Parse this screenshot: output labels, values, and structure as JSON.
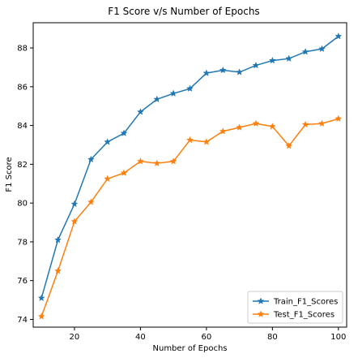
{
  "chart_data": {
    "type": "line",
    "title": "F1 Score v/s Number of Epochs",
    "xlabel": "Number of Epochs",
    "ylabel": "F1 Score",
    "xlim": [
      7.5,
      102.5
    ],
    "ylim": [
      73.6,
      89.3
    ],
    "xticks": [
      20,
      40,
      60,
      80,
      100
    ],
    "yticks": [
      74,
      76,
      78,
      80,
      82,
      84,
      86,
      88
    ],
    "grid": false,
    "legend_position": "lower-right",
    "marker": "star",
    "x": [
      10,
      15,
      20,
      25,
      30,
      35,
      40,
      45,
      50,
      55,
      60,
      65,
      70,
      75,
      80,
      85,
      90,
      95,
      100
    ],
    "series": [
      {
        "name": "Train_F1_Scores",
        "color": "#1f77b4",
        "values": [
          75.1,
          78.1,
          79.95,
          82.25,
          83.15,
          83.6,
          84.7,
          85.35,
          85.65,
          85.9,
          86.7,
          86.85,
          86.75,
          87.1,
          87.35,
          87.45,
          87.8,
          87.95,
          88.6
        ]
      },
      {
        "name": "Test_F1_Scores",
        "color": "#ff7f0e",
        "values": [
          74.15,
          76.5,
          79.05,
          80.05,
          81.25,
          81.55,
          82.15,
          82.05,
          82.15,
          83.25,
          83.15,
          83.7,
          83.9,
          84.1,
          83.95,
          82.95,
          84.05,
          84.1,
          84.35
        ]
      }
    ]
  }
}
